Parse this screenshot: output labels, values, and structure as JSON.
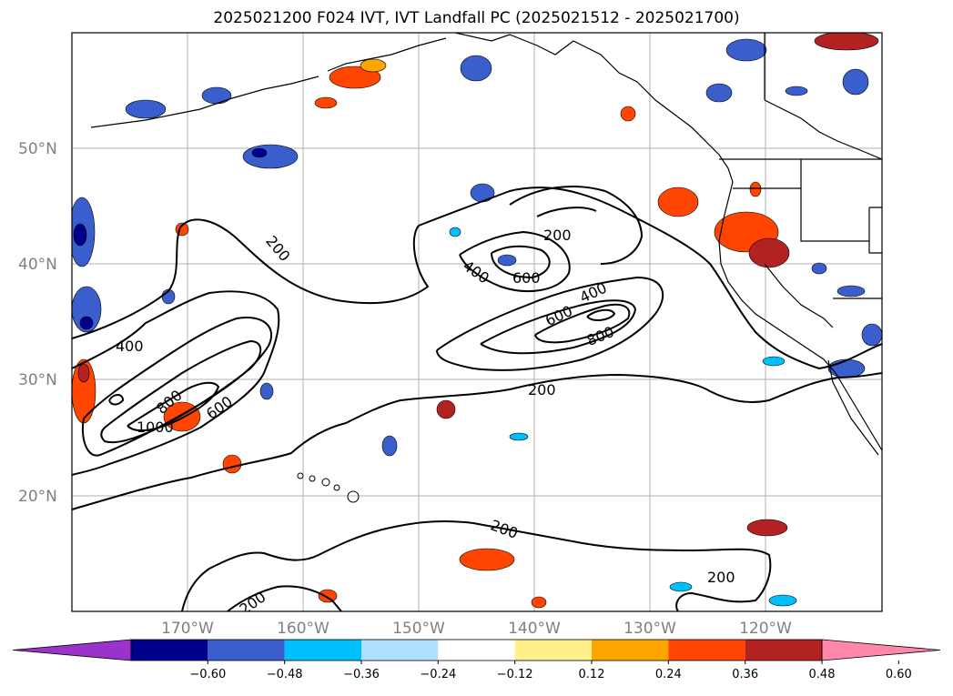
{
  "title": "2025021200 F024 IVT, IVT Landfall PC (2025021512 - 2025021700)",
  "map": {
    "lat_labels": [
      "50°N",
      "40°N",
      "30°N",
      "20°N"
    ],
    "lon_labels": [
      "170°W",
      "160°W",
      "150°W",
      "140°W",
      "130°W",
      "120°W"
    ],
    "contour_levels": [
      200,
      400,
      600,
      800,
      1000
    ],
    "contour_labels": [
      {
        "text": "200"
      },
      {
        "text": "200"
      },
      {
        "text": "200"
      },
      {
        "text": "200"
      },
      {
        "text": "200"
      },
      {
        "text": "200"
      },
      {
        "text": "400"
      },
      {
        "text": "400"
      },
      {
        "text": "400"
      },
      {
        "text": "600"
      },
      {
        "text": "600"
      },
      {
        "text": "600"
      },
      {
        "text": "800"
      },
      {
        "text": "800"
      },
      {
        "text": "1000"
      }
    ]
  },
  "colorbar": {
    "colors": [
      "#9933cc",
      "#00008b",
      "#3a5fcd",
      "#00bfff",
      "#b0e2ff",
      "#ffffff",
      "#fff08a",
      "#ffa500",
      "#ff4500",
      "#b22222",
      "#ff88aa"
    ],
    "ticks": [
      "−0.60",
      "−0.48",
      "−0.36",
      "−0.24",
      "−0.12",
      "0.12",
      "0.24",
      "0.36",
      "0.48",
      "0.60"
    ]
  }
}
